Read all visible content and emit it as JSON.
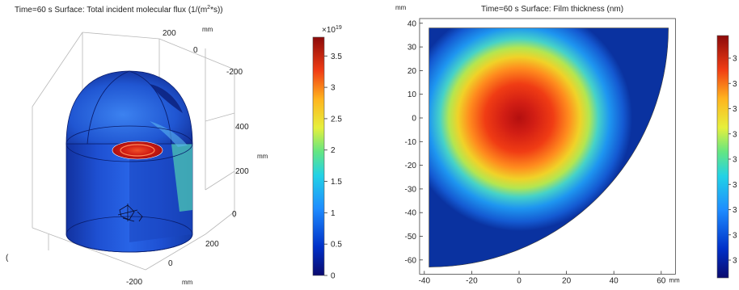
{
  "left_plot": {
    "title": "Time=60 s   Surface: Total incident molecular flux (1/(m",
    "title_sup": "2",
    "title_end": "*s))",
    "axis_unit": "mm",
    "axis_ticks_top": [
      "200",
      "0",
      "-200"
    ],
    "axis_ticks_right": [
      "400",
      "200",
      "0"
    ],
    "axis_ticks_bottom": [
      "200",
      "0",
      "-200"
    ],
    "stray_mark": "(",
    "colorbar": {
      "multiplier": "×10",
      "exponent": "19",
      "ticks": [
        "3.5",
        "3",
        "2.5",
        "2",
        "1.5",
        "1",
        "0.5",
        "0"
      ],
      "min": 0,
      "max": 3.8
    }
  },
  "chart_data": {
    "type": "heatmap",
    "title": "Time=60 s   Surface: Film thickness (nm)",
    "xlabel": "mm",
    "ylabel": "mm",
    "xlim": [
      -42,
      66
    ],
    "ylim": [
      -66,
      42
    ],
    "x_ticks": [
      "-40",
      "-20",
      "0",
      "20",
      "40",
      "60"
    ],
    "y_ticks": [
      "40",
      "30",
      "20",
      "10",
      "0",
      "-10",
      "-20",
      "-30",
      "-40",
      "-50",
      "-60"
    ],
    "domain": {
      "shape": "quarter-disc",
      "corner": [
        -38,
        38
      ],
      "radius": 101,
      "x_edge": -38,
      "y_edge": 38
    },
    "peak_location": [
      0,
      0
    ],
    "colormap": "rainbow",
    "colorbar_ticks": [
      "3",
      "3",
      "3",
      "3",
      "3",
      "3",
      "3",
      "3",
      "3"
    ]
  }
}
